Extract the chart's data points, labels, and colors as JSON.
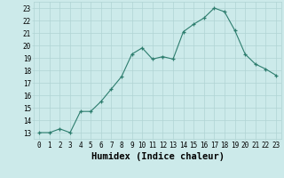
{
  "x": [
    0,
    1,
    2,
    3,
    4,
    5,
    6,
    7,
    8,
    9,
    10,
    11,
    12,
    13,
    14,
    15,
    16,
    17,
    18,
    19,
    20,
    21,
    22,
    23
  ],
  "y": [
    13,
    13,
    13.3,
    13,
    14.7,
    14.7,
    15.5,
    16.5,
    17.5,
    19.3,
    19.8,
    18.9,
    19.1,
    18.9,
    21.1,
    21.7,
    22.2,
    23.0,
    22.7,
    21.2,
    19.3,
    18.5,
    18.1,
    17.6
  ],
  "xlabel": "Humidex (Indice chaleur)",
  "xlim": [
    -0.5,
    23.5
  ],
  "ylim": [
    12.5,
    23.5
  ],
  "yticks": [
    13,
    14,
    15,
    16,
    17,
    18,
    19,
    20,
    21,
    22,
    23
  ],
  "xticks": [
    0,
    1,
    2,
    3,
    4,
    5,
    6,
    7,
    8,
    9,
    10,
    11,
    12,
    13,
    14,
    15,
    16,
    17,
    18,
    19,
    20,
    21,
    22,
    23
  ],
  "line_color": "#2d7d6e",
  "bg_color": "#cceaea",
  "grid_color": "#b0d4d4",
  "tick_fontsize": 5.5,
  "xlabel_fontsize": 7.5,
  "figsize": [
    3.2,
    2.0
  ],
  "dpi": 100
}
